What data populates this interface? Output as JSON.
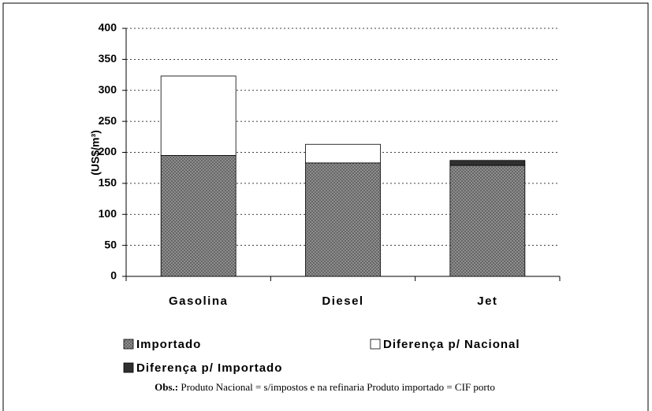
{
  "chart_data": {
    "type": "stacked_bar",
    "y_label": "(US$/m³)",
    "categories": [
      "Gasolina",
      "Diesel",
      "Jet"
    ],
    "series": [
      {
        "name": "Importado",
        "color": "#8c8c8c",
        "values": [
          195,
          183,
          179
        ]
      },
      {
        "name": "Diferença p/ Nacional",
        "color": "#ffffff",
        "values": [
          128,
          30,
          0
        ]
      },
      {
        "name": "Diferença p/ Importado",
        "color": "#303030",
        "values": [
          0,
          0,
          8
        ]
      }
    ],
    "ylim": [
      0,
      400
    ],
    "yticks": [
      0,
      50,
      100,
      150,
      200,
      250,
      300,
      350,
      400
    ],
    "grid": true,
    "note_label": "Obs.:",
    "note": "Produto Nacional = s/impostos e na refinaria Produto importado = CIF porto"
  }
}
